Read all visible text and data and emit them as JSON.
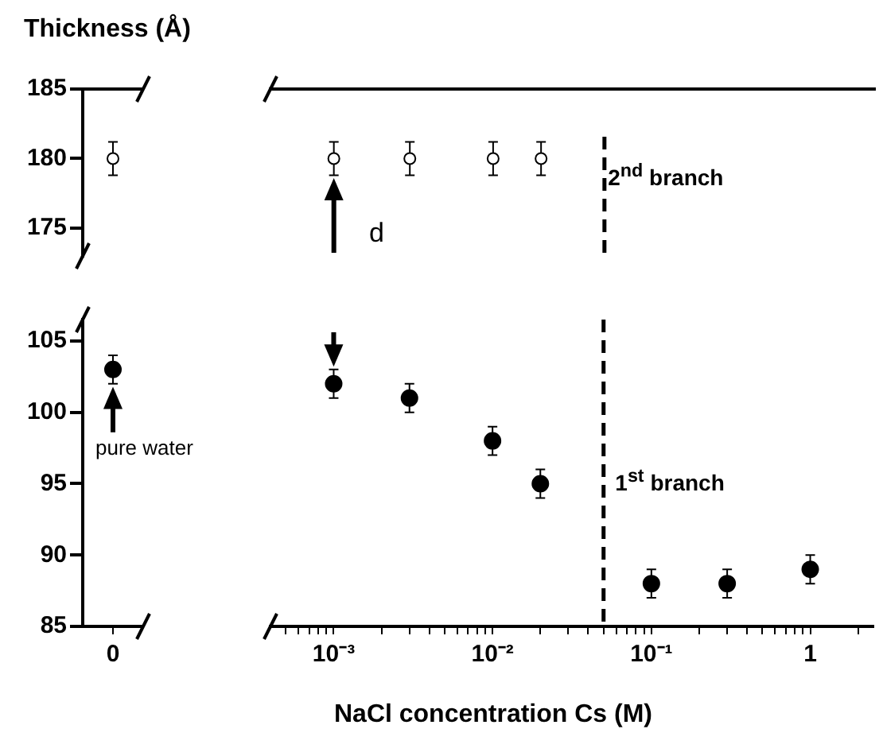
{
  "chart_data": [
    {
      "type": "scatter",
      "ylabel": "Thickness (Å)",
      "categories": [
        "0"
      ],
      "series": [
        {
          "color": "#000000",
          "values": [
            180
          ],
          "errors": [
            1.2
          ]
        }
      ],
      "ylim": [
        173,
        185
      ],
      "yticks": [
        175,
        180,
        185
      ],
      "tick_labels": "y",
      "marker": "circle",
      "grid": false
    },
    {
      "type": "scatter",
      "x": [
        0.001,
        0.003,
        0.01,
        0.02
      ],
      "series": [
        {
          "color": "#000000",
          "values": [
            180,
            180,
            180,
            180
          ],
          "errors": [
            1.2,
            1.2,
            1.2,
            1.2
          ]
        }
      ],
      "xlim": [
        0.0004,
        2.5
      ],
      "log": "x",
      "ylim": [
        173,
        185
      ],
      "tick_labels": false,
      "marker": "circle",
      "grid": false,
      "ref_lines": [
        {
          "axis": "x",
          "value": 0.05,
          "line_style": "dashed",
          "color": "#000000"
        }
      ],
      "annotations": [
        "2$^{nd}$ branch",
        "d"
      ]
    },
    {
      "type": "scatter",
      "categories": [
        "0"
      ],
      "series": [
        {
          "color": "#000000",
          "values": [
            103
          ],
          "errors": [
            1
          ]
        }
      ],
      "ylim": [
        85,
        106.5
      ],
      "yticks": [
        85,
        90,
        95,
        100,
        105
      ],
      "marker": "circle",
      "grid": false,
      "annotations": [
        "pure water"
      ]
    },
    {
      "type": "scatter",
      "xlabel": "NaCl concentration Cs (M)",
      "x": [
        0.001,
        0.003,
        0.01,
        0.02,
        0.1,
        0.3,
        1
      ],
      "series": [
        {
          "color": "#000000",
          "values": [
            102,
            101,
            98,
            95,
            88,
            88,
            89
          ],
          "errors": [
            1,
            1,
            1,
            1,
            1,
            1,
            1
          ]
        }
      ],
      "xlim": [
        0.0004,
        2.5
      ],
      "xticks": [
        {
          "value": 0.0005,
          "label": null
        },
        {
          "value": 0.0006,
          "label": null
        },
        {
          "value": 0.0007,
          "label": null
        },
        {
          "value": 0.0008,
          "label": null
        },
        {
          "value": 0.0009,
          "label": null
        },
        {
          "value": 0.001,
          "label": "10⁻³"
        },
        {
          "value": 0.002,
          "label": null
        },
        {
          "value": 0.003,
          "label": null
        },
        {
          "value": 0.004,
          "label": null
        },
        {
          "value": 0.005,
          "label": null
        },
        {
          "value": 0.006,
          "label": null
        },
        {
          "value": 0.007,
          "label": null
        },
        {
          "value": 0.008,
          "label": null
        },
        {
          "value": 0.009,
          "label": null
        },
        {
          "value": 0.01,
          "label": "10⁻²"
        },
        {
          "value": 0.02,
          "label": null
        },
        {
          "value": 0.03,
          "label": null
        },
        {
          "value": 0.04,
          "label": null
        },
        {
          "value": 0.05,
          "label": null
        },
        {
          "value": 0.06,
          "label": null
        },
        {
          "value": 0.07,
          "label": null
        },
        {
          "value": 0.08,
          "label": null
        },
        {
          "value": 0.09,
          "label": null
        },
        {
          "value": 0.1,
          "label": "10⁻¹"
        },
        {
          "value": 0.2,
          "label": null
        },
        {
          "value": 0.3,
          "label": null
        },
        {
          "value": 0.4,
          "label": null
        },
        {
          "value": 0.5,
          "label": null
        },
        {
          "value": 0.6,
          "label": null
        },
        {
          "value": 0.7,
          "label": null
        },
        {
          "value": 0.8,
          "label": null
        },
        {
          "value": 0.9,
          "label": null
        },
        1,
        {
          "value": 2,
          "label": null
        }
      ],
      "log": "x",
      "ylim": [
        85,
        106.5
      ],
      "tick_labels": "x",
      "marker": "circle",
      "grid": false,
      "ref_lines": [
        {
          "axis": "x",
          "value": 0.05,
          "line_style": "dashed",
          "color": "#000000"
        }
      ],
      "annotations": [
        "1$^{st}$ branch"
      ]
    }
  ]
}
